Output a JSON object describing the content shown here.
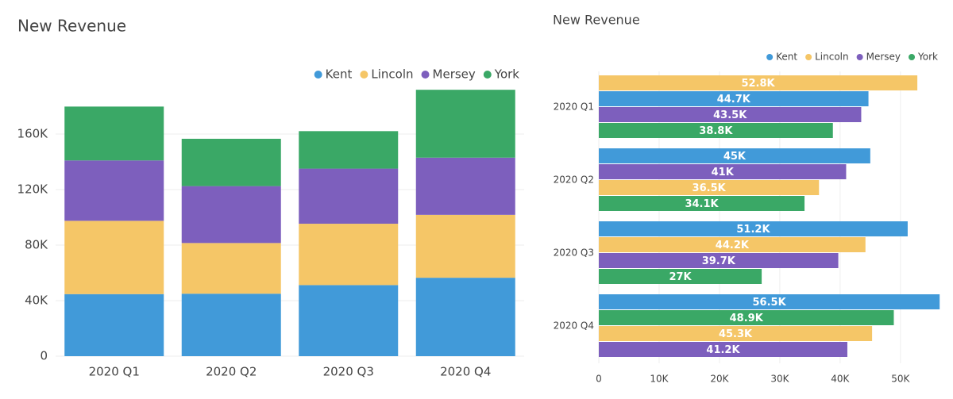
{
  "chart_data": [
    {
      "type": "stacked-bar",
      "title": "New Revenue",
      "categories": [
        "2020 Q1",
        "2020 Q2",
        "2020 Q3",
        "2020 Q4"
      ],
      "series": [
        {
          "name": "Kent",
          "color": "#419ad9",
          "values": [
            44700,
            45000,
            51200,
            56500
          ]
        },
        {
          "name": "Lincoln",
          "color": "#f5c667",
          "values": [
            52800,
            36500,
            44200,
            45300
          ]
        },
        {
          "name": "Mersey",
          "color": "#7d5fbd",
          "values": [
            43500,
            41000,
            39700,
            41200
          ]
        },
        {
          "name": "York",
          "color": "#3aa866",
          "values": [
            38800,
            34100,
            27000,
            48900
          ]
        }
      ],
      "ylim": [
        0,
        200000
      ],
      "yticks": [
        0,
        {
          "value": 40000,
          "label": "40K"
        },
        {
          "value": 80000,
          "label": "80K"
        },
        {
          "value": 120000,
          "label": "120K"
        },
        {
          "value": 160000,
          "label": "160K"
        }
      ],
      "grid": true,
      "legend": "top-right"
    },
    {
      "type": "grouped-hbar",
      "title": "New Revenue",
      "categories": [
        "2020 Q1",
        "2020 Q2",
        "2020 Q3",
        "2020 Q4"
      ],
      "series": [
        {
          "name": "Kent",
          "color": "#419ad9",
          "values": [
            44700,
            45000,
            51200,
            56500
          ],
          "value_labels": [
            "44.7K",
            "45K",
            "51.2K",
            "56.5K"
          ]
        },
        {
          "name": "Lincoln",
          "color": "#f5c667",
          "values": [
            52800,
            36500,
            44200,
            45300
          ],
          "value_labels": [
            "52.8K",
            "36.5K",
            "44.2K",
            "45.3K"
          ]
        },
        {
          "name": "Mersey",
          "color": "#7d5fbd",
          "values": [
            43500,
            41000,
            39700,
            41200
          ],
          "value_labels": [
            "43.5K",
            "41K",
            "39.7K",
            "41.2K"
          ]
        },
        {
          "name": "York",
          "color": "#3aa866",
          "values": [
            38800,
            34100,
            27000,
            48900
          ],
          "value_labels": [
            "38.8K",
            "34.1K",
            "27K",
            "48.9K"
          ]
        }
      ],
      "xlim": [
        0,
        57000
      ],
      "xticks": [
        0,
        {
          "value": 10000,
          "label": "10K"
        },
        {
          "value": 20000,
          "label": "20K"
        },
        {
          "value": 30000,
          "label": "30K"
        },
        {
          "value": 40000,
          "label": "40K"
        },
        {
          "value": 50000,
          "label": "50K"
        }
      ],
      "grid": true,
      "legend": "top-right"
    }
  ]
}
